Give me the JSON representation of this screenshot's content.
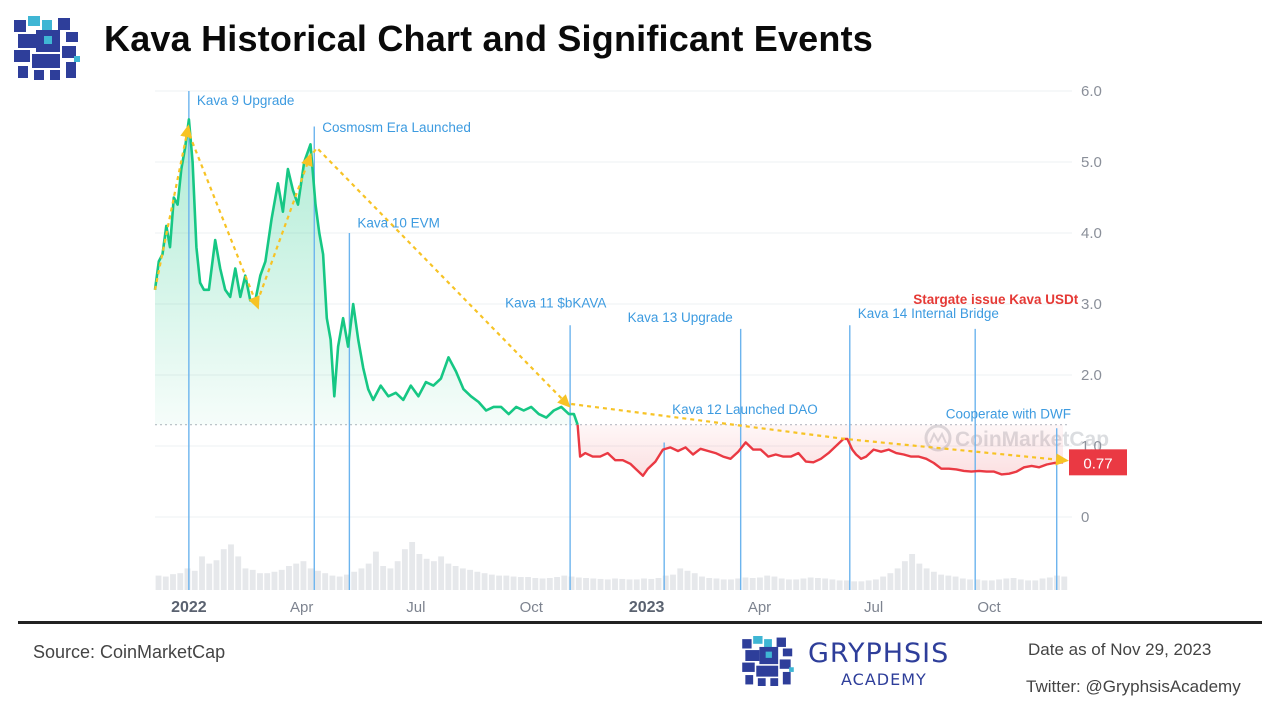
{
  "header": {
    "title": "Kava Historical Chart and Significant Events"
  },
  "footer": {
    "source": "Source: CoinMarketCap",
    "brand_name": "GRYPHSIS",
    "brand_sub": "ACADEMY",
    "date": "Date as of Nov 29, 2023",
    "twitter": "Twitter: @GryphsisAcademy"
  },
  "chart_data": {
    "type": "line",
    "watermark": "CoinMarketCap",
    "colors": {
      "up": "#16c784",
      "down": "#ea3943",
      "event_line": "#6cb4ee",
      "event_text": "#3d9be0",
      "highlight_text": "#e53935",
      "trend": "#f7c325"
    },
    "ylim": [
      -1,
      6
    ],
    "y_ticks": [
      0,
      1.0,
      2.0,
      3.0,
      4.0,
      5.0,
      6.0
    ],
    "y_tick_labels": [
      "0",
      "1.0",
      "2.0",
      "3.0",
      "4.0",
      "5.0",
      "6.0"
    ],
    "x_range": [
      "2021-12-05",
      "2023-12-03"
    ],
    "x_ticks": [
      {
        "date": "2022-01-01",
        "label": "2022",
        "bold": true
      },
      {
        "date": "2022-04-01",
        "label": "Apr",
        "bold": false
      },
      {
        "date": "2022-07-01",
        "label": "Jul",
        "bold": false
      },
      {
        "date": "2022-10-01",
        "label": "Oct",
        "bold": false
      },
      {
        "date": "2023-01-01",
        "label": "2023",
        "bold": true
      },
      {
        "date": "2023-04-01",
        "label": "Apr",
        "bold": false
      },
      {
        "date": "2023-07-01",
        "label": "Jul",
        "bold": false
      },
      {
        "date": "2023-10-01",
        "label": "Oct",
        "bold": false
      }
    ],
    "reference_price": 1.3,
    "last_price": 0.77,
    "last_price_label": "0.77",
    "price": [
      [
        "2021-12-05",
        3.2
      ],
      [
        "2021-12-08",
        3.6
      ],
      [
        "2021-12-11",
        3.7
      ],
      [
        "2021-12-14",
        4.1
      ],
      [
        "2021-12-17",
        3.8
      ],
      [
        "2021-12-20",
        4.5
      ],
      [
        "2021-12-23",
        4.4
      ],
      [
        "2021-12-26",
        4.9
      ],
      [
        "2021-12-29",
        5.2
      ],
      [
        "2022-01-01",
        5.6
      ],
      [
        "2022-01-04",
        5.0
      ],
      [
        "2022-01-07",
        3.8
      ],
      [
        "2022-01-10",
        3.3
      ],
      [
        "2022-01-13",
        3.2
      ],
      [
        "2022-01-17",
        3.2
      ],
      [
        "2022-01-22",
        3.9
      ],
      [
        "2022-01-26",
        3.5
      ],
      [
        "2022-01-30",
        3.2
      ],
      [
        "2022-02-03",
        3.1
      ],
      [
        "2022-02-07",
        3.5
      ],
      [
        "2022-02-11",
        3.1
      ],
      [
        "2022-02-15",
        3.4
      ],
      [
        "2022-02-19",
        3.05
      ],
      [
        "2022-02-23",
        3.05
      ],
      [
        "2022-02-27",
        3.4
      ],
      [
        "2022-03-03",
        3.6
      ],
      [
        "2022-03-08",
        4.2
      ],
      [
        "2022-03-13",
        4.7
      ],
      [
        "2022-03-17",
        4.3
      ],
      [
        "2022-03-21",
        4.9
      ],
      [
        "2022-03-25",
        4.6
      ],
      [
        "2022-03-29",
        4.4
      ],
      [
        "2022-04-03",
        5.0
      ],
      [
        "2022-04-08",
        5.25
      ],
      [
        "2022-04-12",
        4.4
      ],
      [
        "2022-04-15",
        4.0
      ],
      [
        "2022-04-18",
        3.7
      ],
      [
        "2022-04-21",
        2.8
      ],
      [
        "2022-04-24",
        2.5
      ],
      [
        "2022-04-27",
        1.7
      ],
      [
        "2022-04-30",
        2.4
      ],
      [
        "2022-05-04",
        2.8
      ],
      [
        "2022-05-08",
        2.4
      ],
      [
        "2022-05-12",
        3.0
      ],
      [
        "2022-05-16",
        2.5
      ],
      [
        "2022-05-20",
        2.1
      ],
      [
        "2022-05-24",
        1.8
      ],
      [
        "2022-05-28",
        1.65
      ],
      [
        "2022-06-03",
        1.85
      ],
      [
        "2022-06-09",
        1.7
      ],
      [
        "2022-06-15",
        1.75
      ],
      [
        "2022-06-21",
        1.65
      ],
      [
        "2022-06-27",
        1.85
      ],
      [
        "2022-07-03",
        1.7
      ],
      [
        "2022-07-09",
        1.9
      ],
      [
        "2022-07-15",
        1.85
      ],
      [
        "2022-07-21",
        1.95
      ],
      [
        "2022-07-27",
        2.25
      ],
      [
        "2022-08-02",
        2.05
      ],
      [
        "2022-08-08",
        1.8
      ],
      [
        "2022-08-14",
        1.7
      ],
      [
        "2022-08-20",
        1.62
      ],
      [
        "2022-08-26",
        1.5
      ],
      [
        "2022-09-01",
        1.55
      ],
      [
        "2022-09-07",
        1.55
      ],
      [
        "2022-09-13",
        1.45
      ],
      [
        "2022-09-19",
        1.55
      ],
      [
        "2022-09-25",
        1.5
      ],
      [
        "2022-10-01",
        1.55
      ],
      [
        "2022-10-07",
        1.45
      ],
      [
        "2022-10-13",
        1.4
      ],
      [
        "2022-10-19",
        1.5
      ],
      [
        "2022-10-25",
        1.55
      ],
      [
        "2022-10-31",
        1.45
      ],
      [
        "2022-11-04",
        1.45
      ],
      [
        "2022-11-07",
        1.3
      ],
      [
        "2022-11-09",
        0.85
      ],
      [
        "2022-11-13",
        0.9
      ],
      [
        "2022-11-19",
        0.85
      ],
      [
        "2022-11-25",
        0.85
      ],
      [
        "2022-12-01",
        0.9
      ],
      [
        "2022-12-07",
        0.8
      ],
      [
        "2022-12-13",
        0.8
      ],
      [
        "2022-12-19",
        0.75
      ],
      [
        "2022-12-25",
        0.65
      ],
      [
        "2022-12-29",
        0.58
      ],
      [
        "2023-01-02",
        0.68
      ],
      [
        "2023-01-08",
        0.78
      ],
      [
        "2023-01-14",
        0.95
      ],
      [
        "2023-01-20",
        0.98
      ],
      [
        "2023-01-26",
        0.93
      ],
      [
        "2023-02-01",
        0.98
      ],
      [
        "2023-02-07",
        0.88
      ],
      [
        "2023-02-13",
        0.96
      ],
      [
        "2023-02-19",
        0.93
      ],
      [
        "2023-02-25",
        0.9
      ],
      [
        "2023-03-03",
        0.85
      ],
      [
        "2023-03-09",
        0.82
      ],
      [
        "2023-03-15",
        0.92
      ],
      [
        "2023-03-21",
        1.05
      ],
      [
        "2023-03-27",
        0.95
      ],
      [
        "2023-04-02",
        0.95
      ],
      [
        "2023-04-08",
        0.85
      ],
      [
        "2023-04-14",
        0.88
      ],
      [
        "2023-04-20",
        0.85
      ],
      [
        "2023-04-26",
        0.85
      ],
      [
        "2023-05-02",
        0.9
      ],
      [
        "2023-05-08",
        0.78
      ],
      [
        "2023-05-14",
        0.77
      ],
      [
        "2023-05-20",
        0.82
      ],
      [
        "2023-05-26",
        0.9
      ],
      [
        "2023-06-01",
        1.0
      ],
      [
        "2023-06-07",
        1.1
      ],
      [
        "2023-06-10",
        1.1
      ],
      [
        "2023-06-14",
        0.95
      ],
      [
        "2023-06-17",
        0.88
      ],
      [
        "2023-06-21",
        0.82
      ],
      [
        "2023-06-25",
        0.85
      ],
      [
        "2023-07-01",
        0.95
      ],
      [
        "2023-07-07",
        0.92
      ],
      [
        "2023-07-13",
        0.95
      ],
      [
        "2023-07-19",
        0.9
      ],
      [
        "2023-07-25",
        0.88
      ],
      [
        "2023-07-31",
        0.85
      ],
      [
        "2023-08-06",
        0.85
      ],
      [
        "2023-08-12",
        0.82
      ],
      [
        "2023-08-18",
        0.76
      ],
      [
        "2023-08-24",
        0.68
      ],
      [
        "2023-08-30",
        0.68
      ],
      [
        "2023-09-05",
        0.67
      ],
      [
        "2023-09-11",
        0.65
      ],
      [
        "2023-09-17",
        0.64
      ],
      [
        "2023-09-23",
        0.65
      ],
      [
        "2023-09-29",
        0.64
      ],
      [
        "2023-10-05",
        0.64
      ],
      [
        "2023-10-11",
        0.6
      ],
      [
        "2023-10-17",
        0.61
      ],
      [
        "2023-10-23",
        0.64
      ],
      [
        "2023-10-29",
        0.7
      ],
      [
        "2023-11-04",
        0.72
      ],
      [
        "2023-11-10",
        0.7
      ],
      [
        "2023-11-16",
        0.74
      ],
      [
        "2023-11-22",
        0.76
      ],
      [
        "2023-11-29",
        0.77
      ]
    ],
    "trend_line": [
      [
        "2021-12-05",
        3.2
      ],
      [
        "2021-12-31",
        5.45
      ],
      [
        "2022-02-24",
        3.0
      ],
      [
        "2022-04-07",
        5.05
      ],
      [
        "2022-04-13",
        5.2
      ],
      [
        "2022-10-29",
        1.6
      ],
      [
        "2023-06-08",
        1.1
      ],
      [
        "2023-11-29",
        0.8
      ]
    ],
    "trend_arrows": [
      [
        "2021-12-31",
        5.45
      ],
      [
        "2022-02-24",
        3.0
      ],
      [
        "2022-04-07",
        5.05
      ],
      [
        "2022-10-29",
        1.6
      ],
      [
        "2023-11-29",
        0.8
      ]
    ],
    "events": [
      {
        "date": "2022-01-01",
        "label": "Kava 9 Upgrade",
        "label_y": 5.8,
        "line_top": 6.0,
        "highlight": false
      },
      {
        "date": "2022-04-11",
        "label": "Cosmosm Era Launched",
        "label_y": 5.42,
        "line_top": 5.5,
        "highlight": false
      },
      {
        "date": "2022-05-09",
        "label": "Kava 10 EVM",
        "label_y": 4.08,
        "line_top": 4.0,
        "highlight": false
      },
      {
        "date": "2022-11-01",
        "label": "Kava 11 $bKAVA",
        "label_y": 2.95,
        "line_top": 2.7,
        "highlight": false
      },
      {
        "date": "2023-01-15",
        "label": "Kava 12 Launched DAO",
        "label_y": 1.45,
        "line_top": 1.05,
        "highlight": false
      },
      {
        "date": "2023-03-17",
        "label": "Kava 13 Upgrade",
        "label_y": 2.75,
        "line_top": 2.65,
        "highlight": false
      },
      {
        "date": "2023-06-12",
        "label": "Kava 14 Internal Bridge",
        "label_y": 2.8,
        "line_top": 2.7,
        "highlight": false
      },
      {
        "date": "2023-09-20",
        "label": "Stargate issue Kava USDt",
        "label_y": 3.0,
        "line_top": 2.65,
        "highlight": true
      },
      {
        "date": "2023-11-24",
        "label": "Cooperate with DWF",
        "label_y": 1.39,
        "line_top": 1.25,
        "highlight": false
      }
    ],
    "volume": [
      0.3,
      0.28,
      0.33,
      0.35,
      0.45,
      0.4,
      0.7,
      0.55,
      0.62,
      0.85,
      0.95,
      0.7,
      0.45,
      0.42,
      0.35,
      0.35,
      0.38,
      0.42,
      0.5,
      0.55,
      0.6,
      0.45,
      0.4,
      0.35,
      0.3,
      0.28,
      0.32,
      0.38,
      0.45,
      0.55,
      0.8,
      0.5,
      0.45,
      0.6,
      0.85,
      1.0,
      0.75,
      0.65,
      0.6,
      0.7,
      0.55,
      0.5,
      0.45,
      0.42,
      0.38,
      0.35,
      0.32,
      0.3,
      0.3,
      0.28,
      0.27,
      0.27,
      0.25,
      0.24,
      0.25,
      0.27,
      0.3,
      0.28,
      0.26,
      0.25,
      0.24,
      0.23,
      0.22,
      0.24,
      0.23,
      0.22,
      0.22,
      0.24,
      0.23,
      0.25,
      0.3,
      0.32,
      0.45,
      0.4,
      0.35,
      0.28,
      0.25,
      0.24,
      0.22,
      0.22,
      0.24,
      0.26,
      0.25,
      0.26,
      0.3,
      0.28,
      0.24,
      0.22,
      0.22,
      0.24,
      0.26,
      0.25,
      0.24,
      0.22,
      0.2,
      0.2,
      0.18,
      0.18,
      0.2,
      0.22,
      0.28,
      0.35,
      0.45,
      0.6,
      0.75,
      0.55,
      0.45,
      0.38,
      0.32,
      0.3,
      0.28,
      0.24,
      0.22,
      0.22,
      0.2,
      0.2,
      0.22,
      0.24,
      0.25,
      0.22,
      0.2,
      0.2,
      0.24,
      0.26,
      0.3,
      0.28
    ]
  }
}
